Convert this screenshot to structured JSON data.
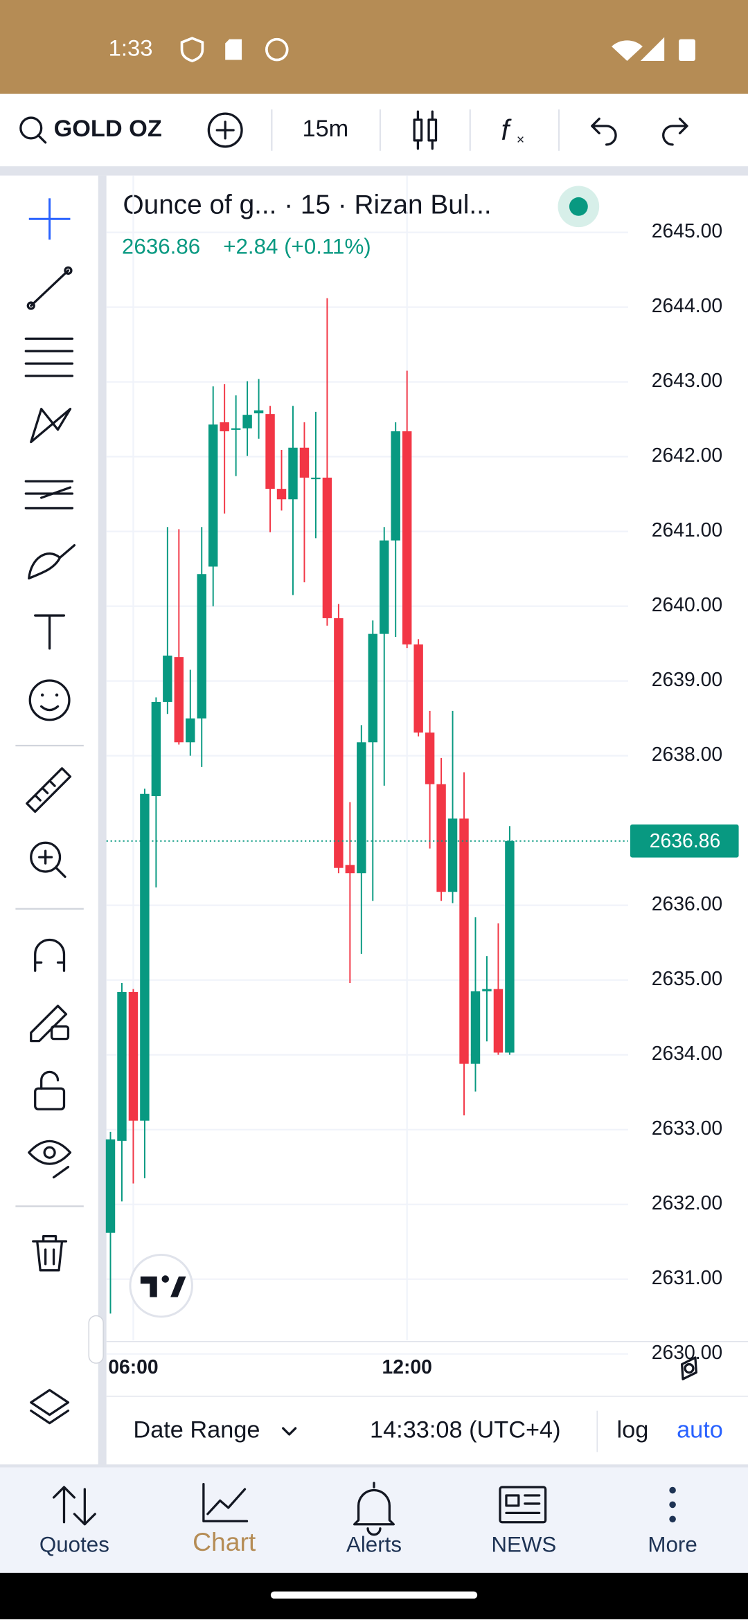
{
  "status_bar": {
    "time": "1:33"
  },
  "toolbar": {
    "symbol": "GOLD OZ",
    "interval": "15m"
  },
  "chart_header": {
    "title": "Ounce of g...  · 15 · Rizan Bul...",
    "last": "2636.86",
    "change": "+2.84 (+0.11%)"
  },
  "chart_data": {
    "type": "candlestick",
    "categories": [
      null,
      null,
      "06:00",
      null,
      null,
      null,
      null,
      null,
      null,
      null,
      null,
      null,
      null,
      null,
      null,
      null,
      null,
      null,
      null,
      null,
      null,
      null,
      null,
      null,
      null,
      null,
      "12:00",
      null,
      null,
      null,
      null,
      null,
      null,
      null,
      null,
      null
    ],
    "open": [
      2631.62,
      2632.85,
      2634.84,
      2633.12,
      2637.46,
      2638.72,
      2639.32,
      2638.18,
      2638.5,
      2640.53,
      2642.46,
      2642.37,
      2642.38,
      2642.58,
      2642.57,
      2641.57,
      2641.43,
      2642.12,
      2641.71,
      2641.72,
      2639.84,
      2636.54,
      2636.43,
      2638.18,
      2639.63,
      2640.88,
      2642.34,
      2639.49,
      2638.31,
      2637.62,
      2636.18,
      2637.16,
      2633.88,
      2634.85,
      2634.88,
      2634.03
    ],
    "high": [
      2632.97,
      2634.96,
      2634.88,
      2637.56,
      2638.78,
      2641.06,
      2641.03,
      2639.15,
      2641.06,
      2642.94,
      2642.97,
      2642.82,
      2643.01,
      2643.04,
      2642.68,
      2642.09,
      2642.68,
      2642.46,
      2642.6,
      2644.12,
      2640.03,
      2637.38,
      2638.41,
      2639.81,
      2641.06,
      2642.46,
      2643.15,
      2639.56,
      2638.6,
      2637.97,
      2638.6,
      2637.78,
      2635.84,
      2635.32,
      2635.76,
      2637.06
    ],
    "low": [
      2630.54,
      2632.04,
      2632.28,
      2632.35,
      2636.24,
      2638.56,
      2638.15,
      2638.0,
      2637.85,
      2640.0,
      2641.24,
      2641.74,
      2642.01,
      2642.24,
      2640.99,
      2641.28,
      2640.15,
      2640.32,
      2640.91,
      2639.74,
      2636.43,
      2634.96,
      2635.35,
      2636.06,
      2637.6,
      2639.59,
      2639.44,
      2638.26,
      2636.76,
      2636.06,
      2636.03,
      2633.19,
      2633.51,
      2634.18,
      2634.0,
      2634.0
    ],
    "close": [
      2632.87,
      2634.84,
      2633.12,
      2637.49,
      2638.72,
      2639.34,
      2638.18,
      2638.5,
      2640.43,
      2642.43,
      2642.34,
      2642.38,
      2642.56,
      2642.62,
      2641.57,
      2641.43,
      2642.12,
      2641.72,
      2641.72,
      2639.84,
      2636.5,
      2636.43,
      2638.18,
      2639.63,
      2640.88,
      2642.34,
      2639.49,
      2638.31,
      2637.62,
      2636.18,
      2637.16,
      2633.88,
      2634.85,
      2634.88,
      2634.03,
      2636.86
    ],
    "up_color": "#089981",
    "down_color": "#f23645",
    "ylim": [
      2630.18,
      2645.76
    ],
    "yticks": [
      {
        "value": 2630,
        "label": "2630.00"
      },
      {
        "value": 2631,
        "label": "2631.00"
      },
      {
        "value": 2632,
        "label": "2632.00"
      },
      {
        "value": 2633,
        "label": "2633.00"
      },
      {
        "value": 2634,
        "label": "2634.00"
      },
      {
        "value": 2635,
        "label": "2635.00"
      },
      {
        "value": 2636,
        "label": "2636.00"
      },
      {
        "value": 2638,
        "label": "2638.00"
      },
      {
        "value": 2639,
        "label": "2639.00"
      },
      {
        "value": 2640,
        "label": "2640.00"
      },
      {
        "value": 2641,
        "label": "2641.00"
      },
      {
        "value": 2642,
        "label": "2642.00"
      },
      {
        "value": 2643,
        "label": "2643.00"
      },
      {
        "value": 2644,
        "label": "2644.00"
      },
      {
        "value": 2645,
        "label": "2645.00"
      }
    ],
    "last_price": 2636.86,
    "grid": true
  },
  "bottom_bar": {
    "date_range": "Date Range",
    "clock": "14:33:08 (UTC+4)",
    "log": "log",
    "auto": "auto"
  },
  "nav": [
    "Quotes",
    "Chart",
    "Alerts",
    "NEWS",
    "More"
  ]
}
